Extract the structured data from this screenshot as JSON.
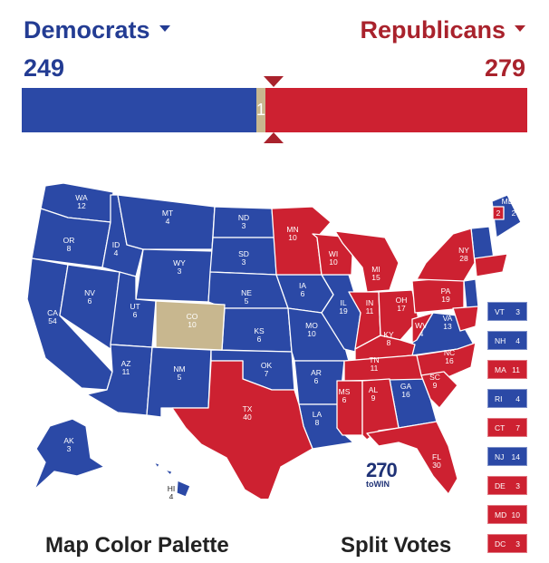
{
  "header": {
    "dem_label": "Democrats",
    "rep_label": "Republicans",
    "dem_total": "249",
    "rep_total": "279",
    "tossup_total": "10",
    "tossup_bar_label": "1"
  },
  "colors": {
    "dem": "#2b49a6",
    "rep": "#cd2131",
    "tossup": "#c8b78f"
  },
  "states": {
    "WA": {
      "abbr": "WA",
      "ev": "12"
    },
    "OR": {
      "abbr": "OR",
      "ev": "8"
    },
    "CA": {
      "abbr": "CA",
      "ev": "54"
    },
    "ID": {
      "abbr": "ID",
      "ev": "4"
    },
    "NV": {
      "abbr": "NV",
      "ev": "6"
    },
    "MT": {
      "abbr": "MT",
      "ev": "4"
    },
    "WY": {
      "abbr": "WY",
      "ev": "3"
    },
    "UT": {
      "abbr": "UT",
      "ev": "6"
    },
    "AZ": {
      "abbr": "AZ",
      "ev": "11"
    },
    "CO": {
      "abbr": "CO",
      "ev": "10"
    },
    "NM": {
      "abbr": "NM",
      "ev": "5"
    },
    "ND": {
      "abbr": "ND",
      "ev": "3"
    },
    "SD": {
      "abbr": "SD",
      "ev": "3"
    },
    "NE": {
      "abbr": "NE",
      "ev": "5"
    },
    "KS": {
      "abbr": "KS",
      "ev": "6"
    },
    "OK": {
      "abbr": "OK",
      "ev": "7"
    },
    "TX": {
      "abbr": "TX",
      "ev": "40"
    },
    "MN": {
      "abbr": "MN",
      "ev": "10"
    },
    "IA": {
      "abbr": "IA",
      "ev": "6"
    },
    "MO": {
      "abbr": "MO",
      "ev": "10"
    },
    "AR": {
      "abbr": "AR",
      "ev": "6"
    },
    "LA": {
      "abbr": "LA",
      "ev": "8"
    },
    "WI": {
      "abbr": "WI",
      "ev": "10"
    },
    "IL": {
      "abbr": "IL",
      "ev": "19"
    },
    "MI": {
      "abbr": "MI",
      "ev": "15"
    },
    "IN": {
      "abbr": "IN",
      "ev": "11"
    },
    "OH": {
      "abbr": "OH",
      "ev": "17"
    },
    "KY": {
      "abbr": "KY",
      "ev": "8"
    },
    "TN": {
      "abbr": "TN",
      "ev": "11"
    },
    "MS": {
      "abbr": "MS",
      "ev": "6"
    },
    "AL": {
      "abbr": "AL",
      "ev": "9"
    },
    "GA": {
      "abbr": "GA",
      "ev": "16"
    },
    "FL": {
      "abbr": "FL",
      "ev": "30"
    },
    "SC": {
      "abbr": "SC",
      "ev": "9"
    },
    "NC": {
      "abbr": "NC",
      "ev": "16"
    },
    "VA": {
      "abbr": "VA",
      "ev": "13"
    },
    "WV": {
      "abbr": "WV",
      "ev": "4"
    },
    "PA": {
      "abbr": "PA",
      "ev": "19"
    },
    "NY": {
      "abbr": "NY",
      "ev": "28"
    },
    "ME": {
      "abbr": "ME",
      "ev": "2",
      "ev_r": "2"
    },
    "AK": {
      "abbr": "AK",
      "ev": "3"
    },
    "HI": {
      "abbr": "HI",
      "ev": "4"
    }
  },
  "small_states": [
    {
      "abbr": "VT",
      "ev": "3",
      "party": "d"
    },
    {
      "abbr": "NH",
      "ev": "4",
      "party": "d"
    },
    {
      "abbr": "MA",
      "ev": "11",
      "party": "r"
    },
    {
      "abbr": "RI",
      "ev": "4",
      "party": "d"
    },
    {
      "abbr": "CT",
      "ev": "7",
      "party": "r"
    },
    {
      "abbr": "NJ",
      "ev": "14",
      "party": "d"
    },
    {
      "abbr": "DE",
      "ev": "3",
      "party": "r"
    },
    {
      "abbr": "MD",
      "ev": "10",
      "party": "r"
    },
    {
      "abbr": "DC",
      "ev": "3",
      "party": "r"
    }
  ],
  "logo": {
    "number": "270",
    "suffix": "toWIN"
  },
  "footer": {
    "left": "Map Color Palette",
    "right": "Split Votes"
  }
}
